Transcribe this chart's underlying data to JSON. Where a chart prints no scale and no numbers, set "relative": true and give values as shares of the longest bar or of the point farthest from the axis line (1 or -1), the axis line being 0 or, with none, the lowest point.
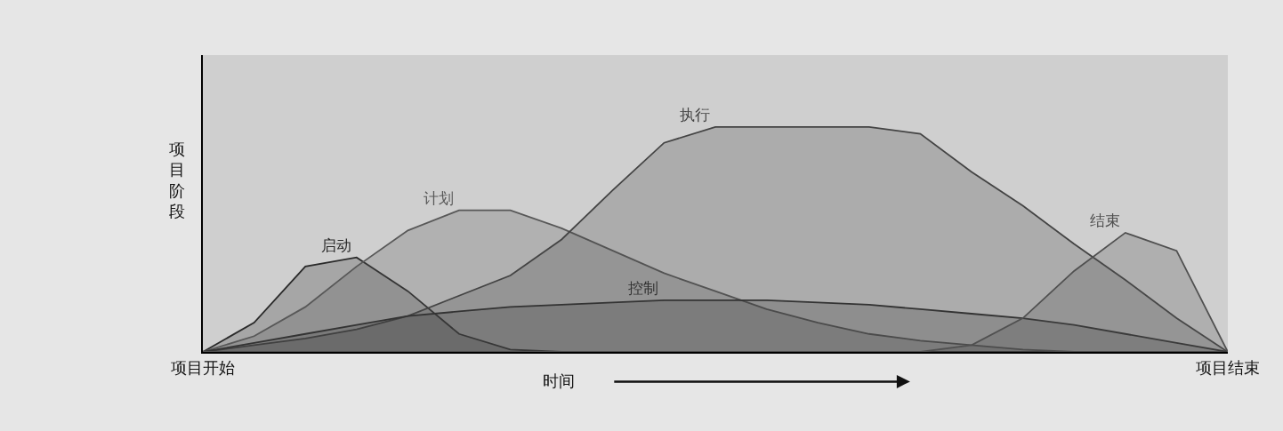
{
  "chart_data": {
    "type": "area",
    "relative": true,
    "ylabel": "项目阶段",
    "xlabel": "时间",
    "categories": [
      "项目开始",
      null,
      null,
      null,
      null,
      null,
      null,
      null,
      null,
      null,
      null,
      null,
      null,
      null,
      null,
      null,
      null,
      null,
      null,
      null,
      "项目结束"
    ],
    "grid": false,
    "legend": false,
    "marker": "none",
    "line_style": "solid",
    "series": [
      {
        "name": "启动",
        "color": "#2a2a2a",
        "values": [
          0,
          0.13,
          0.38,
          0.42,
          0.27,
          0.08,
          0.01,
          0,
          0,
          0,
          0,
          0,
          0,
          0,
          0,
          0,
          0,
          0,
          0,
          0,
          0
        ]
      },
      {
        "name": "计划",
        "color": "#585858",
        "values": [
          0,
          0.07,
          0.2,
          0.38,
          0.54,
          0.63,
          0.63,
          0.55,
          0.45,
          0.35,
          0.27,
          0.19,
          0.13,
          0.08,
          0.05,
          0.03,
          0.01,
          0,
          0,
          0,
          0
        ]
      },
      {
        "name": "执行",
        "color": "#444444",
        "values": [
          0,
          0.03,
          0.06,
          0.1,
          0.16,
          0.25,
          0.34,
          0.5,
          0.72,
          0.93,
          1,
          1,
          1,
          1,
          0.97,
          0.8,
          0.65,
          0.48,
          0.32,
          0.15,
          0
        ]
      },
      {
        "name": "控制",
        "color": "#333333",
        "values": [
          0,
          0.04,
          0.08,
          0.12,
          0.16,
          0.18,
          0.2,
          0.21,
          0.22,
          0.23,
          0.23,
          0.23,
          0.22,
          0.21,
          0.19,
          0.17,
          0.15,
          0.12,
          0.08,
          0.04,
          0
        ]
      },
      {
        "name": "结束",
        "color": "#505050",
        "values": [
          0,
          0,
          0,
          0,
          0,
          0,
          0,
          0,
          0,
          0,
          0,
          0,
          0,
          0,
          0,
          0.03,
          0.15,
          0.36,
          0.53,
          0.45,
          0
        ]
      }
    ]
  }
}
